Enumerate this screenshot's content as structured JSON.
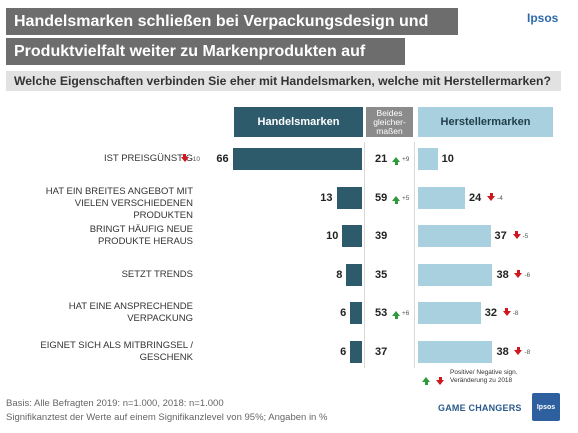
{
  "header": {
    "title_line1": "Handelsmarken schließen bei Verpackungsdesign und",
    "title_line2": "Produktvielfalt weiter zu Markenprodukten auf",
    "question": "Welche Eigenschaften verbinden Sie eher mit Handelsmarken, welche mit Herstellermarken?",
    "logo": "Ipsos"
  },
  "columns": {
    "left": "Handelsmarken",
    "middle_line1": "Beides",
    "middle_line2": "gleicher-",
    "middle_line3": "maßen",
    "right": "Herstellermarken"
  },
  "chart_data": {
    "type": "bar",
    "categories": [
      "IST PREISGÜNSTIG",
      "HAT EIN BREITES ANGEBOT MIT VIELEN VERSCHIEDENEN PRODUKTEN",
      "BRINGT HÄUFIG NEUE PRODUKTE HERAUS",
      "SETZT TRENDS",
      "HAT EINE ANSPRECHENDE VERPACKUNG",
      "EIGNET SICH ALS MITBRINGSEL / GESCHENK"
    ],
    "label_lines": [
      [
        "IST PREISGÜNSTIG"
      ],
      [
        "HAT EIN BREITES ANGEBOT MIT",
        "VIELEN VERSCHIEDENEN PRODUKTEN"
      ],
      [
        "BRINGT HÄUFIG NEUE",
        "PRODUKTE HERAUS"
      ],
      [
        "SETZT TRENDS"
      ],
      [
        "HAT EINE ANSPRECHENDE",
        "VERPACKUNG"
      ],
      [
        "EIGNET SICH ALS MITBRINGSEL /",
        "GESCHENK"
      ]
    ],
    "series": [
      {
        "name": "Handelsmarken",
        "values": [
          66,
          13,
          10,
          8,
          6,
          6
        ],
        "changes": [
          "-10",
          null,
          null,
          null,
          null,
          null
        ]
      },
      {
        "name": "Beides gleichermaßen",
        "values": [
          21,
          59,
          39,
          35,
          53,
          37
        ],
        "changes": [
          "+9",
          "+5",
          null,
          null,
          "+6",
          null
        ]
      },
      {
        "name": "Herstellermarken",
        "values": [
          10,
          24,
          37,
          38,
          32,
          38
        ],
        "changes": [
          null,
          "-4",
          "-5",
          "-6",
          "-8",
          "-8"
        ]
      }
    ],
    "colors": {
      "handelsmarken": "#2d5b6b",
      "herstellermarken": "#a9d0de",
      "up": "#2e9a3c",
      "down": "#d0161e"
    }
  },
  "legend": {
    "line1": "Positive/ Negative sign.",
    "line2": "Veränderung zu 2018"
  },
  "footer": {
    "basis": "Basis: Alle Befragten 2019: n=1.000, 2018: n=1.000",
    "note": "Signifikanztest der Werte auf einem Signifikanzlevel von 95%; Angaben in %",
    "brand_tag": "GAME CHANGERS",
    "logo_small": "Ipsos"
  }
}
